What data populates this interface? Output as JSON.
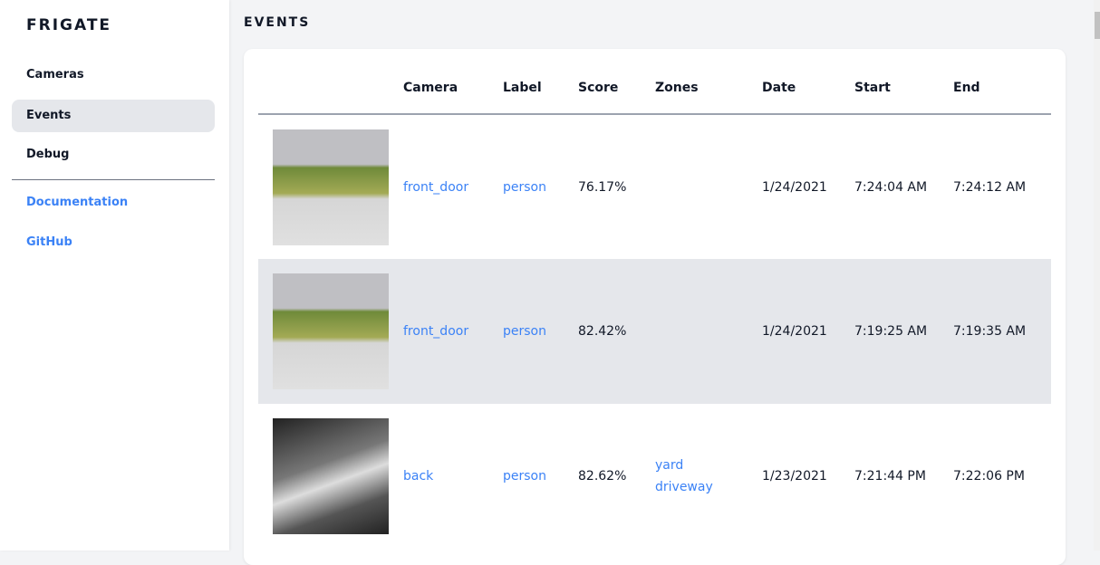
{
  "sidebar": {
    "brand": "FRIGATE",
    "items": [
      {
        "label": "Cameras"
      },
      {
        "label": "Events",
        "active": true
      },
      {
        "label": "Debug"
      }
    ],
    "links": [
      {
        "label": "Documentation"
      },
      {
        "label": "GitHub"
      }
    ]
  },
  "page": {
    "title": "EVENTS"
  },
  "table": {
    "headers": [
      "",
      "Camera",
      "Label",
      "Score",
      "Zones",
      "Date",
      "Start",
      "End"
    ],
    "rows": [
      {
        "camera": "front_door",
        "label": "person",
        "score": "76.17%",
        "zones": [
          "",
          ""
        ],
        "date": "1/24/2021",
        "start": "7:24:04 AM",
        "end": "7:24:12 AM",
        "thumb": "color"
      },
      {
        "camera": "front_door",
        "label": "person",
        "score": "82.42%",
        "zones": [
          "",
          ""
        ],
        "date": "1/24/2021",
        "start": "7:19:25 AM",
        "end": "7:19:35 AM",
        "thumb": "color"
      },
      {
        "camera": "back",
        "label": "person",
        "score": "82.62%",
        "zones": [
          "yard",
          "driveway"
        ],
        "date": "1/23/2021",
        "start": "7:21:44 PM",
        "end": "7:22:06 PM",
        "thumb": "night"
      }
    ]
  },
  "colors": {
    "accent": "#3b82f6",
    "active_bg": "#e5e7eb"
  }
}
